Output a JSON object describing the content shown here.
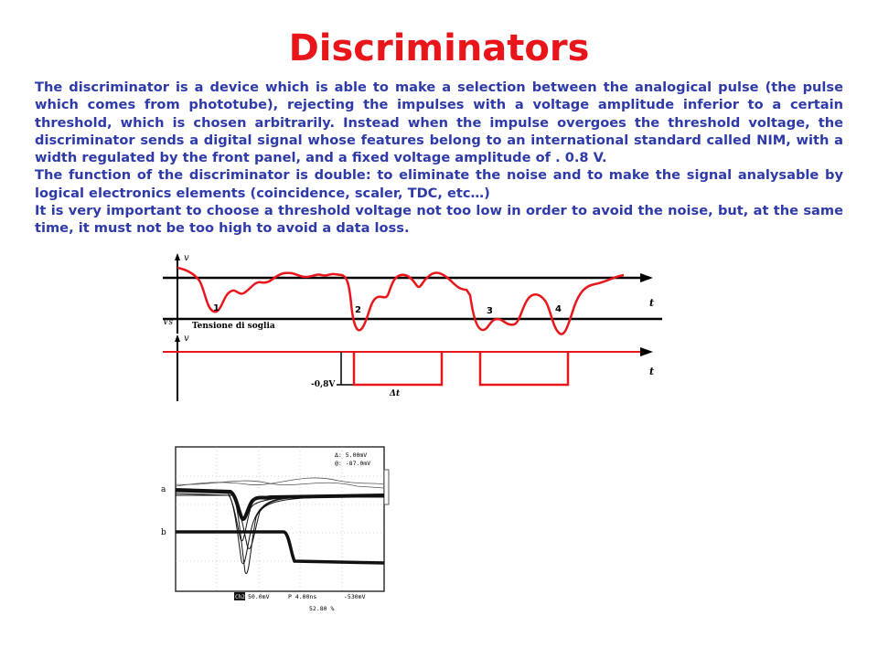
{
  "slide": {
    "title": "Discriminators",
    "paragraphs": [
      "The discriminator is a device which is able to make a selection between the analogical pulse (the pulse which comes from phototube), rejecting the impulses with a voltage amplitude inferior to a certain threshold, which is chosen arbitrarily. Instead when the impulse overgoes the threshold voltage, the discriminator sends a digital signal whose features belong to an international standard called NIM, with a width regulated by the front panel, and a fixed voltage amplitude of . 0.8 V.",
      "The function of the discriminator is double: to eliminate the noise and to make the signal analysable by logical electronics elements (coincidence, scaler, TDC, etc…)",
      "It is very important to choose a threshold voltage not too low in order to avoid the noise, but, at the same time, it must not be too high to avoid a data loss."
    ]
  },
  "diagram": {
    "axis_v": "v",
    "axis_t": "t",
    "threshold_symbol": "Vs",
    "threshold_label": "Tensione di soglia",
    "pulse_numbers": [
      "1",
      "2",
      "3",
      "4"
    ],
    "nim_level": "-0,8V",
    "width_label": "Δt"
  },
  "scope": {
    "trace_a": "a",
    "trace_b": "b",
    "readout_delta": "Δ:  5.00mV",
    "readout_at": "@:  -87.0mV",
    "channel": "Ch2",
    "volts_div": "50.0mV",
    "time_div": "P 4.00ns",
    "trigger": "-530mV",
    "percent": "52.80 %"
  },
  "colors": {
    "title": "#e8151b",
    "body_text": "#2e3aa8",
    "signal": "#e8151b"
  }
}
